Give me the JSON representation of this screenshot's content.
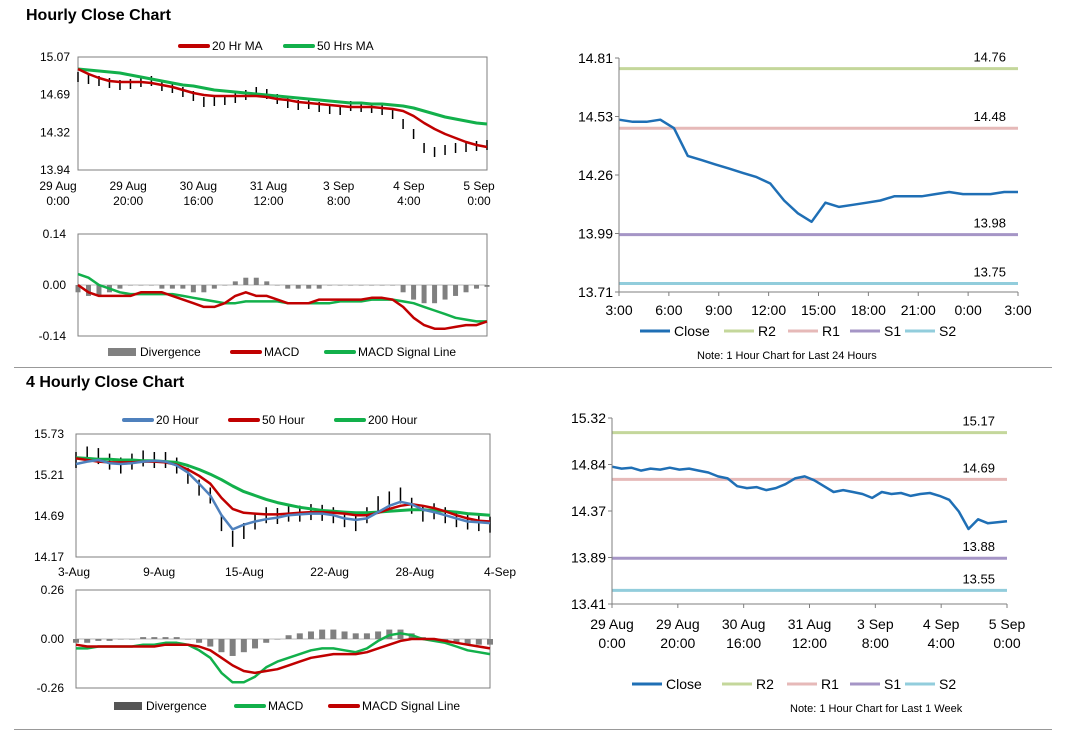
{
  "sections": {
    "hourly_title": "Hourly Close Chart",
    "four_hourly_title": "4 Hourly Close Chart"
  },
  "colors": {
    "red": "#c00000",
    "green": "#12b04b",
    "blue": "#1f6fb5",
    "price": "#000000",
    "divergence": "#808080",
    "r2": "#c4d79b",
    "r1": "#e6b9b8",
    "s1": "#a595c6",
    "s2": "#92cddc"
  },
  "chart_data": [
    {
      "id": "hourly_price",
      "type": "line",
      "title": "",
      "legend": [
        "20 Hr MA",
        "50 Hrs MA"
      ],
      "y_ticks": [
        "15.07",
        "14.69",
        "14.32",
        "13.94"
      ],
      "ylim": [
        13.94,
        15.07
      ],
      "x_ticks": [
        [
          "29 Aug",
          "0:00"
        ],
        [
          "29 Aug",
          "20:00"
        ],
        [
          "30 Aug",
          "16:00"
        ],
        [
          "31 Aug",
          "12:00"
        ],
        [
          "3 Sep",
          "8:00"
        ],
        [
          "4 Sep",
          "4:00"
        ],
        [
          "5 Sep",
          "0:00"
        ]
      ],
      "series": [
        {
          "name": "Price",
          "values": [
            14.87,
            14.85,
            14.83,
            14.81,
            14.79,
            14.8,
            14.82,
            14.83,
            14.78,
            14.76,
            14.72,
            14.68,
            14.62,
            14.63,
            14.64,
            14.66,
            14.69,
            14.72,
            14.7,
            14.65,
            14.61,
            14.59,
            14.6,
            14.57,
            14.55,
            14.54,
            14.58,
            14.57,
            14.56,
            14.54,
            14.5,
            14.4,
            14.3,
            14.16,
            14.12,
            14.14,
            14.16,
            14.17,
            14.18,
            14.19
          ]
        },
        {
          "name": "20 Hr MA",
          "values": [
            14.95,
            14.9,
            14.86,
            14.83,
            14.82,
            14.82,
            14.82,
            14.81,
            14.79,
            14.77,
            14.74,
            14.71,
            14.69,
            14.68,
            14.68,
            14.68,
            14.68,
            14.68,
            14.67,
            14.65,
            14.64,
            14.62,
            14.61,
            14.6,
            14.59,
            14.58,
            14.57,
            14.57,
            14.57,
            14.56,
            14.55,
            14.53,
            14.48,
            14.41,
            14.35,
            14.3,
            14.26,
            14.22,
            14.19,
            14.17
          ]
        },
        {
          "name": "50 Hrs MA",
          "values": [
            14.95,
            14.94,
            14.93,
            14.92,
            14.91,
            14.89,
            14.87,
            14.85,
            14.83,
            14.81,
            14.79,
            14.78,
            14.76,
            14.74,
            14.73,
            14.72,
            14.71,
            14.7,
            14.69,
            14.68,
            14.67,
            14.66,
            14.65,
            14.64,
            14.63,
            14.62,
            14.61,
            14.61,
            14.6,
            14.6,
            14.59,
            14.58,
            14.56,
            14.53,
            14.5,
            14.47,
            14.45,
            14.43,
            14.41,
            14.4
          ]
        }
      ]
    },
    {
      "id": "hourly_macd",
      "type": "line",
      "legend": [
        "Divergence",
        "MACD",
        "MACD Signal Line"
      ],
      "y_ticks": [
        "0.14",
        "0.00",
        "-0.14"
      ],
      "ylim": [
        -0.14,
        0.14
      ],
      "series": [
        {
          "name": "Divergence",
          "values": [
            -0.02,
            -0.03,
            -0.03,
            -0.02,
            -0.01,
            0.0,
            0.0,
            0.0,
            -0.01,
            -0.01,
            -0.01,
            -0.02,
            -0.02,
            -0.01,
            0.0,
            0.01,
            0.02,
            0.02,
            0.01,
            0.0,
            -0.01,
            -0.01,
            -0.01,
            -0.01,
            0.0,
            0.0,
            0.0,
            0.0,
            0.0,
            0.0,
            0.0,
            -0.02,
            -0.04,
            -0.05,
            -0.05,
            -0.04,
            -0.03,
            -0.02,
            -0.01,
            -0.005
          ]
        },
        {
          "name": "MACD",
          "values": [
            0.0,
            -0.02,
            -0.03,
            -0.03,
            -0.03,
            -0.03,
            -0.02,
            -0.02,
            -0.02,
            -0.03,
            -0.04,
            -0.05,
            -0.06,
            -0.06,
            -0.05,
            -0.03,
            -0.02,
            -0.03,
            -0.03,
            -0.04,
            -0.05,
            -0.05,
            -0.05,
            -0.04,
            -0.04,
            -0.04,
            -0.04,
            -0.04,
            -0.035,
            -0.035,
            -0.04,
            -0.06,
            -0.09,
            -0.11,
            -0.12,
            -0.12,
            -0.115,
            -0.11,
            -0.11,
            -0.1
          ]
        },
        {
          "name": "MACD Signal Line",
          "values": [
            0.03,
            0.02,
            0.0,
            -0.01,
            -0.02,
            -0.025,
            -0.025,
            -0.025,
            -0.025,
            -0.025,
            -0.03,
            -0.035,
            -0.04,
            -0.045,
            -0.05,
            -0.05,
            -0.045,
            -0.045,
            -0.045,
            -0.045,
            -0.05,
            -0.05,
            -0.05,
            -0.05,
            -0.05,
            -0.045,
            -0.045,
            -0.045,
            -0.04,
            -0.04,
            -0.04,
            -0.045,
            -0.05,
            -0.06,
            -0.07,
            -0.08,
            -0.09,
            -0.095,
            -0.1,
            -0.1
          ]
        }
      ]
    },
    {
      "id": "hourly_pivot",
      "type": "line",
      "legend": [
        "Close",
        "R2",
        "R1",
        "S1",
        "S2"
      ],
      "note": "Note: 1 Hour Chart for Last 24 Hours",
      "y_ticks": [
        "14.81",
        "14.53",
        "14.26",
        "13.99",
        "13.71"
      ],
      "ylim": [
        13.71,
        14.81
      ],
      "x_ticks": [
        "3:00",
        "6:00",
        "9:00",
        "12:00",
        "15:00",
        "18:00",
        "21:00",
        "0:00",
        "3:00"
      ],
      "levels": {
        "R2": 14.76,
        "R1": 14.48,
        "S1": 13.98,
        "S2": 13.75
      },
      "level_labels": {
        "R2": "14.76",
        "R1": "14.48",
        "S1": "13.98",
        "S2": "13.75"
      },
      "series": [
        {
          "name": "Close",
          "values": [
            14.52,
            14.51,
            14.51,
            14.52,
            14.48,
            14.35,
            14.33,
            14.31,
            14.29,
            14.27,
            14.25,
            14.22,
            14.14,
            14.08,
            14.04,
            14.13,
            14.11,
            14.12,
            14.13,
            14.14,
            14.16,
            14.16,
            14.16,
            14.17,
            14.18,
            14.17,
            14.17,
            14.17,
            14.18,
            14.18
          ]
        }
      ]
    },
    {
      "id": "four_hourly_price",
      "type": "line",
      "legend": [
        "20 Hour",
        "50 Hour",
        "200 Hour"
      ],
      "y_ticks": [
        "15.73",
        "15.21",
        "14.69",
        "14.17"
      ],
      "ylim": [
        14.17,
        15.73
      ],
      "x_ticks": [
        "3-Aug",
        "9-Aug",
        "15-Aug",
        "22-Aug",
        "28-Aug",
        "4-Sep"
      ],
      "series": [
        {
          "name": "Price",
          "values": [
            15.4,
            15.47,
            15.45,
            15.38,
            15.33,
            15.38,
            15.42,
            15.4,
            15.4,
            15.33,
            15.2,
            15.05,
            14.95,
            14.6,
            14.4,
            14.5,
            14.62,
            14.7,
            14.69,
            14.72,
            14.72,
            14.74,
            14.73,
            14.7,
            14.65,
            14.6,
            14.7,
            14.84,
            14.9,
            14.95,
            14.82,
            14.72,
            14.75,
            14.7,
            14.65,
            14.62,
            14.6,
            14.58
          ]
        },
        {
          "name": "20 Hour",
          "values": [
            15.35,
            15.38,
            15.4,
            15.36,
            15.35,
            15.36,
            15.38,
            15.39,
            15.38,
            15.33,
            15.24,
            15.1,
            14.95,
            14.7,
            14.52,
            14.58,
            14.62,
            14.65,
            14.67,
            14.7,
            14.71,
            14.72,
            14.72,
            14.7,
            14.66,
            14.64,
            14.66,
            14.74,
            14.82,
            14.87,
            14.84,
            14.77,
            14.74,
            14.7,
            14.66,
            14.62,
            14.61,
            14.6
          ]
        },
        {
          "name": "50 Hour",
          "values": [
            15.42,
            15.4,
            15.38,
            15.37,
            15.37,
            15.37,
            15.38,
            15.38,
            15.37,
            15.34,
            15.28,
            15.2,
            15.1,
            14.92,
            14.78,
            14.73,
            14.72,
            14.71,
            14.71,
            14.72,
            14.73,
            14.74,
            14.74,
            14.73,
            14.72,
            14.7,
            14.7,
            14.73,
            14.78,
            14.82,
            14.84,
            14.82,
            14.79,
            14.75,
            14.7,
            14.66,
            14.63,
            14.62
          ]
        },
        {
          "name": "200 Hour",
          "values": [
            15.43,
            15.42,
            15.41,
            15.41,
            15.4,
            15.4,
            15.39,
            15.39,
            15.38,
            15.37,
            15.33,
            15.28,
            15.22,
            15.15,
            15.07,
            15.0,
            14.95,
            14.9,
            14.86,
            14.83,
            14.8,
            14.78,
            14.76,
            14.75,
            14.74,
            14.73,
            14.73,
            14.74,
            14.75,
            14.76,
            14.77,
            14.77,
            14.76,
            14.75,
            14.74,
            14.72,
            14.71,
            14.7
          ]
        }
      ]
    },
    {
      "id": "four_hourly_macd",
      "type": "line",
      "legend": [
        "Divergence",
        "MACD",
        "MACD Signal Line"
      ],
      "y_ticks": [
        "0.26",
        "0.00",
        "-0.26"
      ],
      "ylim": [
        -0.26,
        0.26
      ],
      "series": [
        {
          "name": "Divergence",
          "values": [
            -0.02,
            -0.02,
            -0.01,
            -0.01,
            0.0,
            0.0,
            0.01,
            0.01,
            0.01,
            0.01,
            0.0,
            -0.02,
            -0.04,
            -0.07,
            -0.09,
            -0.07,
            -0.05,
            -0.02,
            0.0,
            0.02,
            0.03,
            0.04,
            0.05,
            0.05,
            0.04,
            0.03,
            0.03,
            0.04,
            0.05,
            0.05,
            0.03,
            0.01,
            0.0,
            -0.01,
            -0.02,
            -0.03,
            -0.03,
            -0.03
          ]
        },
        {
          "name": "MACD",
          "values": [
            -0.05,
            -0.05,
            -0.04,
            -0.04,
            -0.04,
            -0.04,
            -0.03,
            -0.03,
            -0.02,
            -0.02,
            -0.03,
            -0.06,
            -0.1,
            -0.18,
            -0.23,
            -0.23,
            -0.2,
            -0.15,
            -0.12,
            -0.1,
            -0.08,
            -0.06,
            -0.05,
            -0.05,
            -0.06,
            -0.07,
            -0.05,
            -0.01,
            0.02,
            0.03,
            0.02,
            0.0,
            -0.01,
            -0.02,
            -0.04,
            -0.06,
            -0.07,
            -0.08
          ]
        },
        {
          "name": "MACD Signal Line",
          "values": [
            -0.03,
            -0.04,
            -0.04,
            -0.04,
            -0.04,
            -0.04,
            -0.04,
            -0.04,
            -0.03,
            -0.03,
            -0.03,
            -0.04,
            -0.06,
            -0.1,
            -0.14,
            -0.17,
            -0.18,
            -0.17,
            -0.16,
            -0.14,
            -0.12,
            -0.1,
            -0.09,
            -0.08,
            -0.08,
            -0.08,
            -0.07,
            -0.05,
            -0.03,
            -0.01,
            0.0,
            0.0,
            0.0,
            -0.01,
            -0.02,
            -0.03,
            -0.04,
            -0.05
          ]
        }
      ]
    },
    {
      "id": "weekly_pivot",
      "type": "line",
      "legend": [
        "Close",
        "R2",
        "R1",
        "S1",
        "S2"
      ],
      "note": "Note: 1 Hour Chart for Last 1 Week",
      "y_ticks": [
        "15.32",
        "14.84",
        "14.37",
        "13.89",
        "13.41"
      ],
      "ylim": [
        13.41,
        15.32
      ],
      "x_ticks": [
        [
          "29 Aug",
          "0:00"
        ],
        [
          "29 Aug",
          "20:00"
        ],
        [
          "30 Aug",
          "16:00"
        ],
        [
          "31 Aug",
          "12:00"
        ],
        [
          "3 Sep",
          "8:00"
        ],
        [
          "4 Sep",
          "4:00"
        ],
        [
          "5 Sep",
          "0:00"
        ]
      ],
      "levels": {
        "R2": 15.17,
        "R1": 14.69,
        "S1": 13.88,
        "S2": 13.55
      },
      "level_labels": {
        "R2": "15.17",
        "R1": "14.69",
        "S1": "13.88",
        "S2": "13.55"
      },
      "series": [
        {
          "name": "Close",
          "values": [
            14.82,
            14.8,
            14.81,
            14.78,
            14.8,
            14.79,
            14.81,
            14.79,
            14.8,
            14.78,
            14.76,
            14.72,
            14.7,
            14.62,
            14.6,
            14.61,
            14.58,
            14.6,
            14.64,
            14.7,
            14.72,
            14.68,
            14.62,
            14.56,
            14.58,
            14.56,
            14.54,
            14.5,
            14.56,
            14.54,
            14.55,
            14.52,
            14.54,
            14.55,
            14.52,
            14.48,
            14.36,
            14.18,
            14.28,
            14.24,
            14.25,
            14.26
          ]
        }
      ]
    }
  ]
}
